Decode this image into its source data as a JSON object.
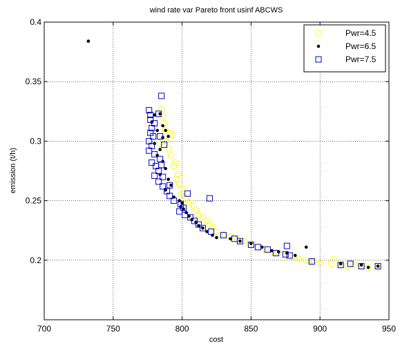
{
  "chart_data": {
    "type": "scatter",
    "title": "wind rate var  Pareto front usinf ABCWS",
    "xlabel": "cost",
    "ylabel": "emission (t/h)",
    "xlim": [
      700,
      950
    ],
    "ylim": [
      0.15,
      0.4
    ],
    "xticks": [
      700,
      750,
      800,
      850,
      900,
      950
    ],
    "yticks": [
      0.2,
      0.25,
      0.3,
      0.35,
      0.4
    ],
    "ytick_labels": [
      "0.2",
      "0.25",
      "0.3",
      "0.35",
      "0.4"
    ],
    "grid": true,
    "legend_position": "top-right",
    "series": [
      {
        "name": "Pwr=4.5",
        "marker": "circle-open",
        "color": "#ffff00",
        "points": [
          [
            785,
            0.327
          ],
          [
            786,
            0.321
          ],
          [
            787,
            0.315
          ],
          [
            788,
            0.309
          ],
          [
            791,
            0.307
          ],
          [
            793,
            0.305
          ],
          [
            784,
            0.298
          ],
          [
            788,
            0.3
          ],
          [
            790,
            0.294
          ],
          [
            792,
            0.288
          ],
          [
            795,
            0.282
          ],
          [
            794,
            0.279
          ],
          [
            797,
            0.272
          ],
          [
            796,
            0.268
          ],
          [
            798,
            0.264
          ],
          [
            800,
            0.26
          ],
          [
            799,
            0.255
          ],
          [
            803,
            0.252
          ],
          [
            805,
            0.249
          ],
          [
            808,
            0.246
          ],
          [
            810,
            0.242
          ],
          [
            812,
            0.238
          ],
          [
            815,
            0.236
          ],
          [
            818,
            0.233
          ],
          [
            820,
            0.23
          ],
          [
            822,
            0.228
          ],
          [
            825,
            0.224
          ],
          [
            830,
            0.222
          ],
          [
            835,
            0.22
          ],
          [
            840,
            0.218
          ],
          [
            845,
            0.216
          ],
          [
            850,
            0.213
          ],
          [
            855,
            0.211
          ],
          [
            860,
            0.209
          ],
          [
            865,
            0.207
          ],
          [
            870,
            0.206
          ],
          [
            875,
            0.204
          ],
          [
            880,
            0.203
          ],
          [
            885,
            0.201
          ],
          [
            890,
            0.2
          ],
          [
            895,
            0.199
          ],
          [
            900,
            0.198
          ],
          [
            908,
            0.197
          ],
          [
            910,
            0.201
          ],
          [
            915,
            0.196
          ],
          [
            920,
            0.195
          ],
          [
            925,
            0.196
          ],
          [
            930,
            0.195
          ],
          [
            935,
            0.194
          ],
          [
            942,
            0.194
          ]
        ]
      },
      {
        "name": "Pwr=6.5",
        "marker": "dot",
        "color": "#000000",
        "points": [
          [
            732,
            0.384
          ],
          [
            780,
            0.322
          ],
          [
            784,
            0.323
          ],
          [
            778,
            0.316
          ],
          [
            786,
            0.313
          ],
          [
            788,
            0.309
          ],
          [
            782,
            0.309
          ],
          [
            786,
            0.303
          ],
          [
            790,
            0.304
          ],
          [
            780,
            0.298
          ],
          [
            784,
            0.293
          ],
          [
            782,
            0.288
          ],
          [
            786,
            0.283
          ],
          [
            788,
            0.277
          ],
          [
            784,
            0.272
          ],
          [
            790,
            0.268
          ],
          [
            792,
            0.263
          ],
          [
            788,
            0.259
          ],
          [
            794,
            0.253
          ],
          [
            798,
            0.25
          ],
          [
            800,
            0.248
          ],
          [
            799,
            0.245
          ],
          [
            801,
            0.243
          ],
          [
            803,
            0.24
          ],
          [
            805,
            0.237
          ],
          [
            807,
            0.234
          ],
          [
            810,
            0.232
          ],
          [
            812,
            0.229
          ],
          [
            815,
            0.227
          ],
          [
            818,
            0.224
          ],
          [
            822,
            0.221
          ],
          [
            825,
            0.219
          ],
          [
            835,
            0.218
          ],
          [
            842,
            0.216
          ],
          [
            850,
            0.214
          ],
          [
            858,
            0.211
          ],
          [
            865,
            0.208
          ],
          [
            870,
            0.207
          ],
          [
            876,
            0.206
          ],
          [
            882,
            0.204
          ],
          [
            890,
            0.211
          ],
          [
            915,
            0.197
          ],
          [
            930,
            0.196
          ],
          [
            935,
            0.194
          ],
          [
            942,
            0.195
          ]
        ]
      },
      {
        "name": "Pwr=7.5",
        "marker": "square-open",
        "color": "#0000cc",
        "points": [
          [
            785,
            0.338
          ],
          [
            776,
            0.326
          ],
          [
            777,
            0.322
          ],
          [
            777,
            0.318
          ],
          [
            783,
            0.323
          ],
          [
            780,
            0.315
          ],
          [
            778,
            0.311
          ],
          [
            777,
            0.307
          ],
          [
            779,
            0.304
          ],
          [
            784,
            0.304
          ],
          [
            776,
            0.3
          ],
          [
            778,
            0.296
          ],
          [
            787,
            0.297
          ],
          [
            776,
            0.292
          ],
          [
            780,
            0.289
          ],
          [
            784,
            0.285
          ],
          [
            778,
            0.282
          ],
          [
            781,
            0.279
          ],
          [
            785,
            0.28
          ],
          [
            783,
            0.275
          ],
          [
            780,
            0.271
          ],
          [
            786,
            0.27
          ],
          [
            783,
            0.266
          ],
          [
            786,
            0.262
          ],
          [
            791,
            0.263
          ],
          [
            789,
            0.258
          ],
          [
            791,
            0.254
          ],
          [
            794,
            0.25
          ],
          [
            799,
            0.247
          ],
          [
            801,
            0.244
          ],
          [
            798,
            0.241
          ],
          [
            802,
            0.238
          ],
          [
            804,
            0.256
          ],
          [
            806,
            0.236
          ],
          [
            809,
            0.233
          ],
          [
            812,
            0.23
          ],
          [
            820,
            0.252
          ],
          [
            815,
            0.227
          ],
          [
            821,
            0.224
          ],
          [
            830,
            0.221
          ],
          [
            838,
            0.218
          ],
          [
            842,
            0.216
          ],
          [
            850,
            0.213
          ],
          [
            855,
            0.211
          ],
          [
            862,
            0.209
          ],
          [
            868,
            0.206
          ],
          [
            875,
            0.205
          ],
          [
            876,
            0.212
          ],
          [
            878,
            0.204
          ],
          [
            894,
            0.199
          ],
          [
            915,
            0.196
          ],
          [
            922,
            0.197
          ],
          [
            930,
            0.195
          ],
          [
            942,
            0.195
          ]
        ]
      }
    ]
  }
}
